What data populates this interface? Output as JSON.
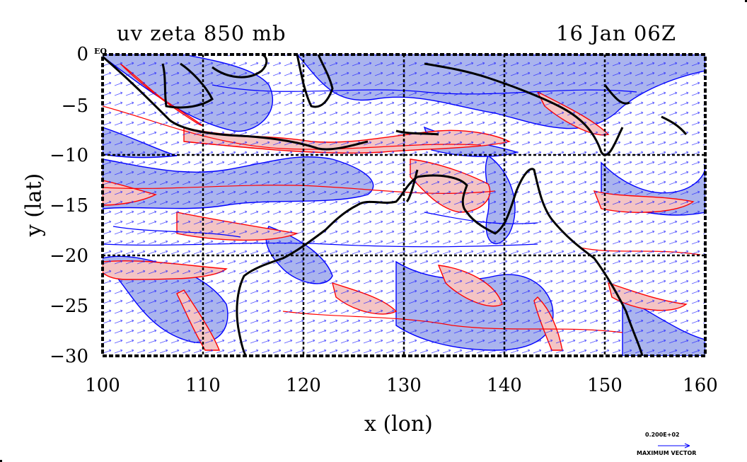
{
  "title_left": "uv zeta 850 mb",
  "title_right": "16 Jan 06Z",
  "x_axis": {
    "label": "x (lon)",
    "ticks": [
      "100",
      "110",
      "120",
      "130",
      "140",
      "150",
      "160"
    ],
    "range": [
      100,
      160
    ]
  },
  "y_axis": {
    "label": "y (lat)",
    "ticks": [
      "0",
      "−5",
      "−10",
      "−15",
      "−20",
      "−25",
      "−30"
    ],
    "range": [
      -30,
      0
    ]
  },
  "equator_marker": "EQ",
  "legend": {
    "max_vector_value": "0.200E+02",
    "max_vector_caption": "MAXIMUM VECTOR"
  },
  "colors": {
    "positive_fill": "#f4c4c4",
    "negative_fill": "#aab4ee",
    "positive_contour": "#ff0000",
    "negative_contour": "#0000ff",
    "vectors": "#0000ff",
    "coastline": "#000000"
  },
  "grid": "dashed",
  "field": "relative vorticity (zeta) with wind vectors (uv) at 850 mb"
}
